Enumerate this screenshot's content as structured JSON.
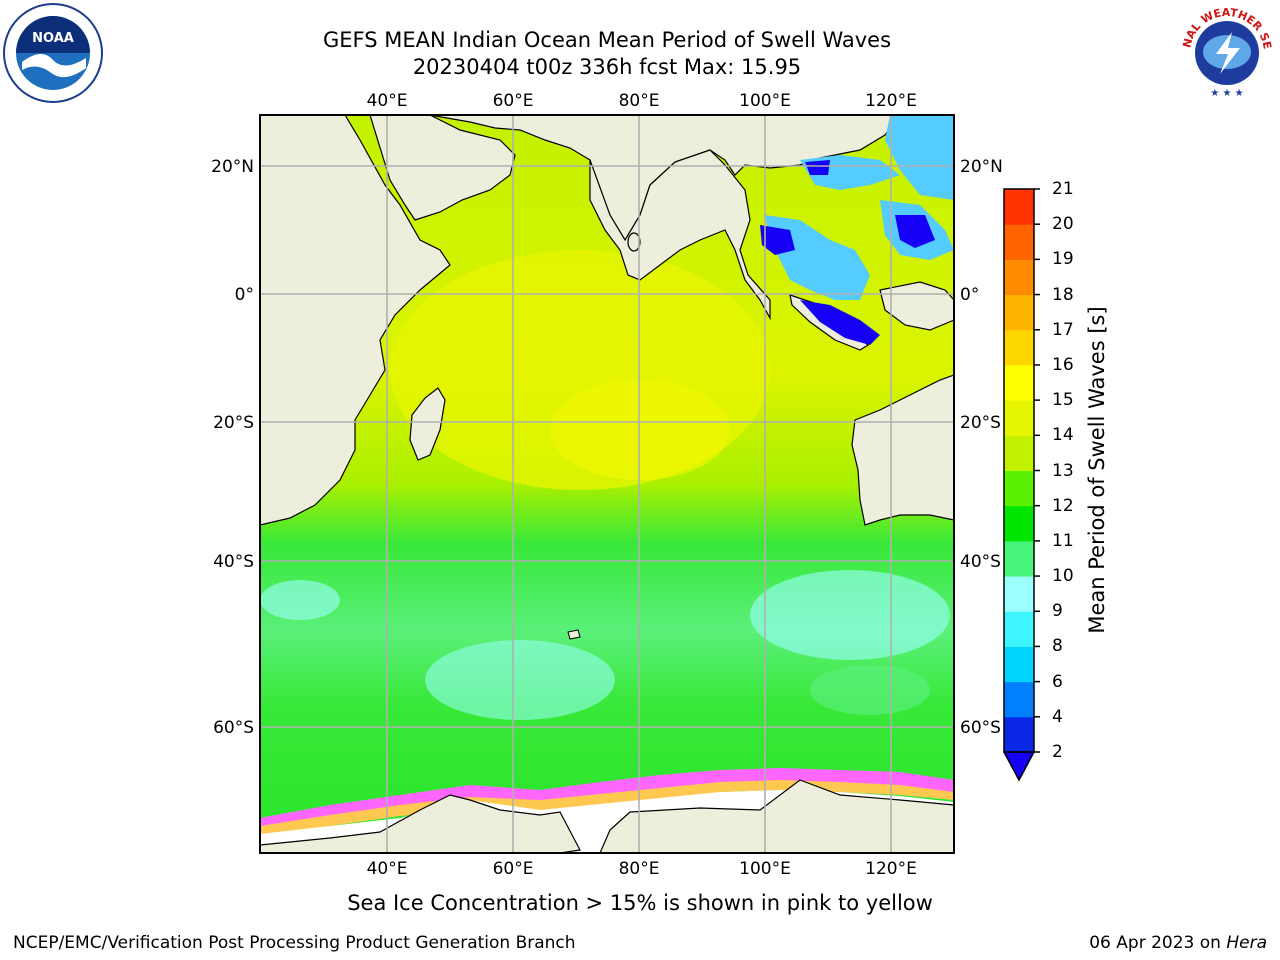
{
  "title": {
    "line1": "GEFS MEAN Indian Ocean Mean Period of Swell Waves",
    "line2": "20230404 t00z 336h fcst   Max: 15.95"
  },
  "logos": {
    "left": {
      "text": "NOAA",
      "icon": "noaa-logo-icon"
    },
    "right": {
      "text": "NATIONAL WEATHER SERVICE",
      "icon": "nws-logo-icon"
    }
  },
  "map": {
    "lon_ticks": [
      "40°E",
      "60°E",
      "80°E",
      "100°E",
      "120°E"
    ],
    "lat_ticks_left": [
      "20°N",
      "0°",
      "20°S",
      "40°S",
      "60°S"
    ],
    "lat_ticks_right": [
      "20°N",
      "0°",
      "20°S",
      "40°S",
      "60°S"
    ],
    "extent": {
      "lon_min": 20,
      "lon_max": 130,
      "lat_min": -73,
      "lat_max": 28
    },
    "colors": {
      "land": "#eeeedc",
      "grid": "#b0b0b0",
      "ice": "#ff66ff"
    }
  },
  "colorbar": {
    "label": "Mean Period of Swell Waves [s]",
    "ticks": [
      "2",
      "4",
      "6",
      "8",
      "9",
      "10",
      "11",
      "12",
      "13",
      "14",
      "15",
      "16",
      "17",
      "18",
      "19",
      "20",
      "21"
    ],
    "colors": [
      "#0a27e8",
      "#0080ff",
      "#00d5ff",
      "#3cf5ff",
      "#9cffff",
      "#46f57a",
      "#00e600",
      "#5af200",
      "#c2f200",
      "#e6f500",
      "#ffff00",
      "#ffd700",
      "#ffb400",
      "#ff8c00",
      "#ff6400",
      "#ff3200",
      "#ff0000"
    ],
    "under_color": "#1500f5"
  },
  "caption": "Sea Ice Concentration > 15% is shown in pink to yellow",
  "footer": {
    "left": "NCEP/EMC/Verification Post Processing Product Generation Branch",
    "right_date": "06 Apr 2023 on ",
    "right_machine": "Hera"
  }
}
